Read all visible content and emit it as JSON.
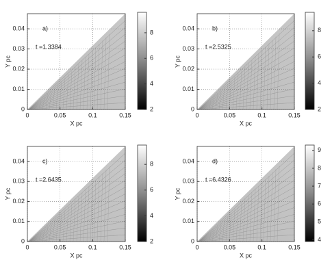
{
  "chart_data": [
    {
      "type": "heatmap",
      "label": "a)",
      "annotation": "t =1.3384",
      "xlabel": "X pc",
      "ylabel": "Y pc",
      "xlim": [
        0,
        0.15
      ],
      "ylim": [
        0,
        0.0475
      ],
      "xticks": [
        0,
        0.05,
        0.1,
        0.15
      ],
      "yticks": [
        0,
        0.01,
        0.02,
        0.03,
        0.04
      ],
      "clim": [
        2,
        9.6
      ],
      "cticks": [
        2,
        4,
        6,
        8
      ],
      "grid": true
    },
    {
      "type": "heatmap",
      "label": "b)",
      "annotation": "t =2.5325",
      "xlabel": "X pc",
      "ylabel": "Y pc",
      "xlim": [
        0,
        0.15
      ],
      "ylim": [
        0,
        0.0475
      ],
      "xticks": [
        0,
        0.05,
        0.1,
        0.15
      ],
      "yticks": [
        0,
        0.01,
        0.02,
        0.03,
        0.04
      ],
      "clim": [
        2,
        9.4
      ],
      "cticks": [
        2,
        4,
        6,
        8
      ],
      "grid": true
    },
    {
      "type": "heatmap",
      "label": "c)",
      "annotation": "t =2.6435",
      "xlabel": "X pc",
      "ylabel": "Y pc",
      "xlim": [
        0,
        0.15
      ],
      "ylim": [
        0,
        0.0475
      ],
      "xticks": [
        0,
        0.05,
        0.1,
        0.15
      ],
      "yticks": [
        0,
        0.01,
        0.02,
        0.03,
        0.04
      ],
      "clim": [
        2,
        9.5
      ],
      "cticks": [
        2,
        4,
        6,
        8
      ],
      "grid": true
    },
    {
      "type": "heatmap",
      "label": "d)",
      "annotation": "t =6.4326",
      "xlabel": "X pc",
      "ylabel": "Y pc",
      "xlim": [
        0,
        0.15
      ],
      "ylim": [
        0,
        0.0475
      ],
      "xticks": [
        0,
        0.05,
        0.1,
        0.15
      ],
      "yticks": [
        0,
        0.01,
        0.02,
        0.03,
        0.04
      ],
      "clim": [
        3.9,
        9.3
      ],
      "cticks": [
        4,
        5,
        6,
        7,
        8,
        9
      ],
      "grid": true
    }
  ]
}
